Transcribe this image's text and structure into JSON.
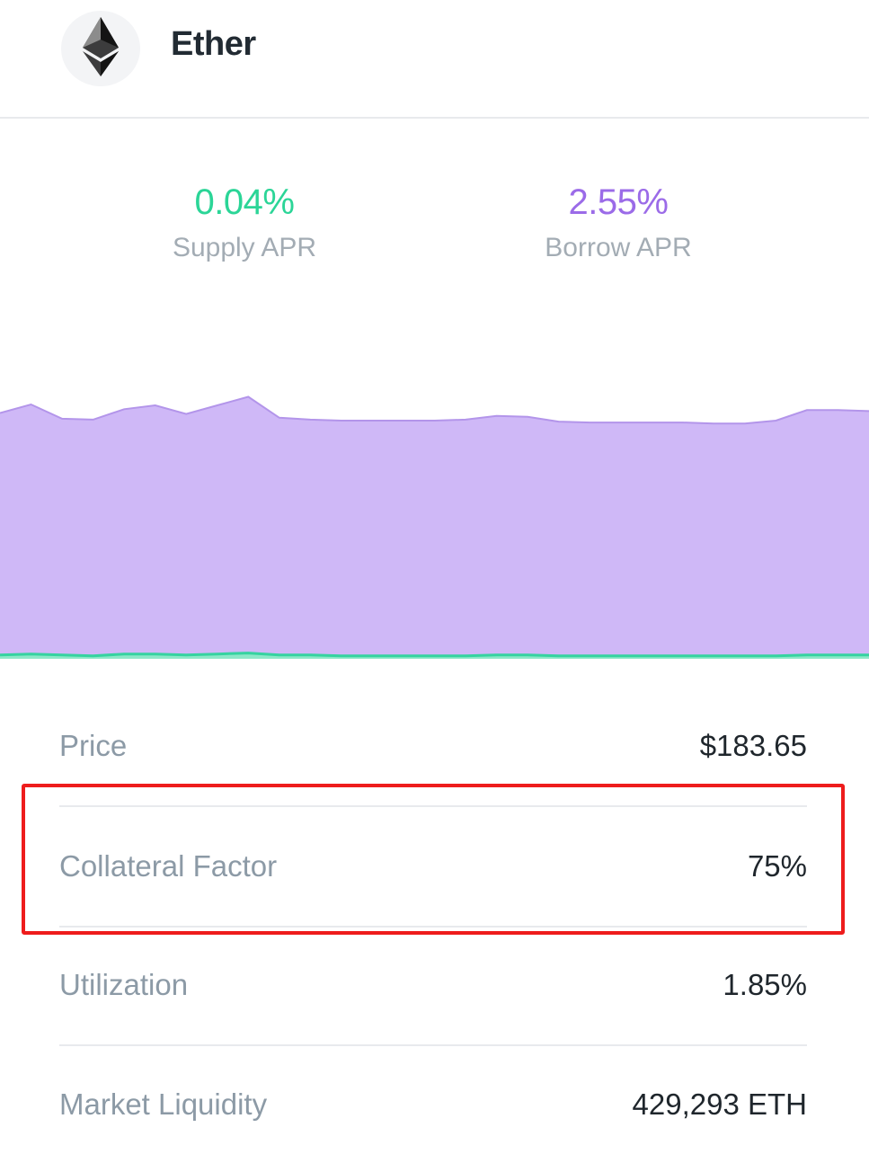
{
  "asset": {
    "name": "Ether",
    "icon": "ethereum-icon"
  },
  "rates": {
    "supply": {
      "value": "0.04%",
      "label": "Supply APR",
      "color": "#2bd597"
    },
    "borrow": {
      "value": "2.55%",
      "label": "Borrow APR",
      "color": "#9b6be8"
    }
  },
  "chart_data": {
    "type": "area",
    "title": "",
    "xlabel": "",
    "ylabel": "",
    "ylim": [
      0,
      3.0
    ],
    "x": [
      0,
      1,
      2,
      3,
      4,
      5,
      6,
      7,
      8,
      9,
      10,
      11,
      12,
      13,
      14,
      15,
      16,
      17,
      18,
      19,
      20,
      21,
      22,
      23,
      24,
      25,
      26,
      27,
      28
    ],
    "series": [
      {
        "name": "Borrow APR",
        "color": "#cfb8f7",
        "line_color": "#b395ea",
        "values": [
          2.58,
          2.67,
          2.52,
          2.51,
          2.62,
          2.66,
          2.57,
          2.66,
          2.75,
          2.53,
          2.51,
          2.5,
          2.5,
          2.5,
          2.5,
          2.51,
          2.55,
          2.54,
          2.49,
          2.48,
          2.48,
          2.48,
          2.48,
          2.47,
          2.47,
          2.5,
          2.61,
          2.61,
          2.6
        ]
      },
      {
        "name": "Supply APR",
        "color": "#8ce8c8",
        "line_color": "#35d3a0",
        "values": [
          0.04,
          0.05,
          0.04,
          0.03,
          0.05,
          0.05,
          0.04,
          0.05,
          0.06,
          0.04,
          0.04,
          0.03,
          0.03,
          0.03,
          0.03,
          0.03,
          0.04,
          0.04,
          0.03,
          0.03,
          0.03,
          0.03,
          0.03,
          0.03,
          0.03,
          0.03,
          0.04,
          0.04,
          0.04
        ]
      }
    ]
  },
  "details": [
    {
      "label": "Price",
      "value": "$183.65"
    },
    {
      "label": "Collateral Factor",
      "value": "75%",
      "highlighted": true
    },
    {
      "label": "Utilization",
      "value": "1.85%"
    },
    {
      "label": "Market Liquidity",
      "value": "429,293 ETH"
    }
  ],
  "annotation": {
    "highlight_color": "#ee1c1c"
  }
}
